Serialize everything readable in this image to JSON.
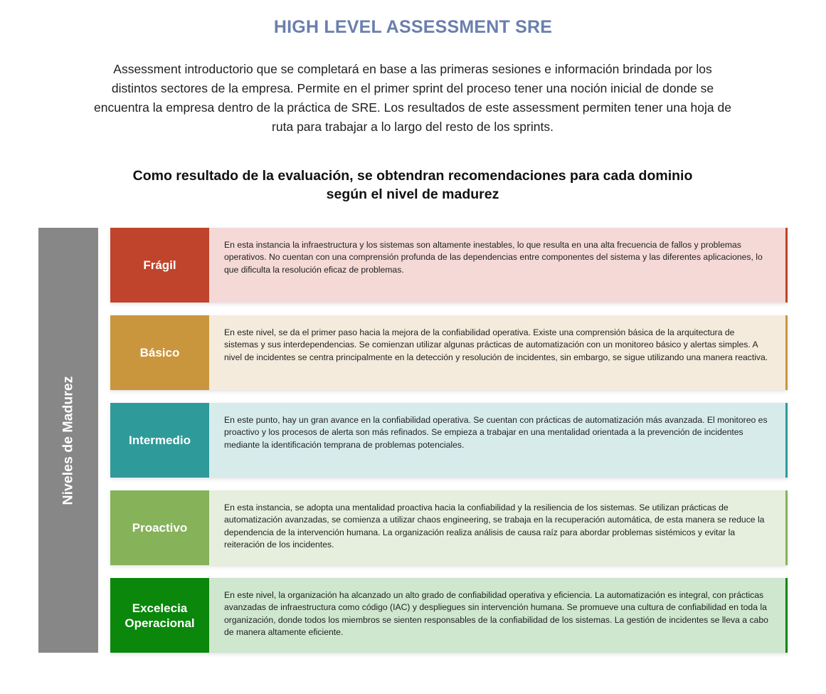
{
  "title": "HIGH LEVEL ASSESSMENT SRE",
  "intro": "Assessment introductorio que se completará en base a las primeras sesiones e información brindada por los distintos sectores de la empresa. Permite en el primer sprint del proceso tener una noción inicial de donde se encuentra la empresa dentro de la práctica de SRE. Los resultados de este assessment permiten tener una hoja de ruta para trabajar a lo largo del resto de los sprints.",
  "subtitle": "Como resultado de la evaluación, se obtendran recomendaciones para cada dominio según el nivel de madurez",
  "side_label": "Niveles de Madurez",
  "levels": [
    {
      "name": "Frágil",
      "description": "En esta instancia la infraestructura y los sistemas son altamente inestables, lo que resulta en una alta frecuencia de fallos y problemas operativos. No cuentan con una comprensión profunda de las dependencias entre componentes del sistema y las diferentes aplicaciones, lo que dificulta la resolución eficaz de problemas.",
      "color": "#bf442b",
      "bg": "#f4d9d6"
    },
    {
      "name": "Básico",
      "description": "En este nivel, se da el primer paso hacia la mejora de la confiabilidad operativa. Existe una comprensión básica de la arquitectura de sistemas y sus interdependencias. Se comienzan utilizar algunas prácticas de automatización con un monitoreo básico y alertas simples. A nivel de incidentes se centra principalmente en la detección y resolución de incidentes, sin embargo, se sigue utilizando una manera reactiva.",
      "color": "#c9963e",
      "bg": "#f4ebdc"
    },
    {
      "name": "Intermedio",
      "description": "En este punto, hay un gran avance en la confiabilidad operativa. Se cuentan con prácticas de automatización más avanzada. El monitoreo es proactivo y los procesos de alerta son más refinados. Se empieza a trabajar en una mentalidad orientada a la prevención de incidentes mediante la identificación temprana de problemas potenciales.",
      "color": "#2f9a9a",
      "bg": "#d7ebeb"
    },
    {
      "name": "Proactivo",
      "description": "En esta instancia, se adopta una mentalidad proactiva hacia la confiabilidad y la resiliencia de los sistemas. Se utilizan prácticas de automatización avanzadas, se comienza a utilizar chaos engineering, se trabaja en la recuperación automática, de esta manera se reduce la dependencia de la intervención humana. La organización realiza análisis de causa raíz para abordar problemas sistémicos y evitar la reiteración de los incidentes.",
      "color": "#86b25a",
      "bg": "#e6efdd"
    },
    {
      "name": "Excelecia\nOperacional",
      "description": "En este nivel, la organización ha alcanzado un alto grado de confiabilidad operativa y eficiencia. La automatización es integral, con prácticas avanzadas de infraestructura como código (IAC) y despliegues sin intervención humana. Se promueve una cultura de confiabilidad en toda la organización, donde todos los miembros se sienten responsables de la confiabilidad de los sistemas. La gestión de incidentes se lleva a cabo de manera altamente eficiente.",
      "color": "#0b870b",
      "bg": "#cfe6cf"
    }
  ]
}
